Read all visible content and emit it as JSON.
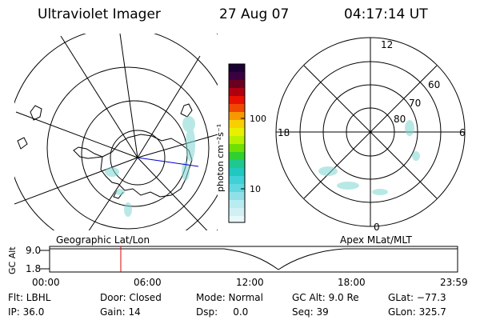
{
  "header": {
    "title": "Ultraviolet Imager",
    "date": "27 Aug 07",
    "time": "04:17:14 UT"
  },
  "geo_panel": {
    "label": "Geographic Lat/Lon"
  },
  "mag_panel": {
    "label": "Apex MLat/MLT",
    "mlt": {
      "top": "12",
      "left": "18",
      "right": "6",
      "bottom": "0"
    },
    "lat": {
      "l60": "60",
      "l70": "70",
      "l80": "80"
    }
  },
  "colorbar": {
    "unit_label": "photon cm⁻²s⁻¹",
    "ticks": [
      "100",
      "10"
    ]
  },
  "timeline": {
    "ylabel": "GC Alt",
    "y_ticks": [
      "9.0",
      "1.8"
    ],
    "x_ticks": [
      "00:00",
      "06:00",
      "12:00",
      "18:00",
      "23:59"
    ],
    "marker_time": "04:17"
  },
  "info": {
    "row1": {
      "filter": "Flt: LBHL",
      "door": "Door: Closed",
      "mode": "Mode: Normal",
      "gc_alt": "GC Alt: 9.0 Re",
      "glat": "GLat: −77.3"
    },
    "row2": {
      "ip": "IP: 36.0",
      "gain": "Gain: 14",
      "dsp": "Dsp:     0.0",
      "seq": "Seq: 39",
      "glon": "GLon: 325.7"
    }
  },
  "colors": {
    "marker": "#e00000",
    "meridian": "#0000cc",
    "aurora": "#7fd6d2"
  }
}
